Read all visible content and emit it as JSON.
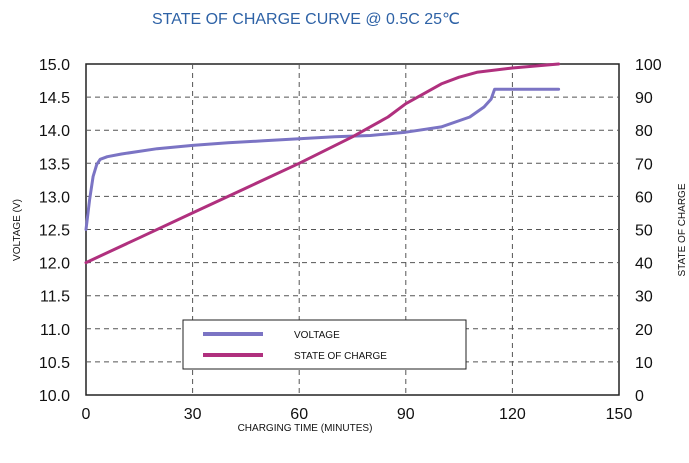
{
  "chart_data": {
    "type": "line",
    "title": "STATE OF CHARGE CURVE @ 0.5C 25℃",
    "xlabel": "CHARGING TIME (MINUTES)",
    "ylabel_left": "VOLTAGE (V)",
    "ylabel_right": "STATE OF CHARGE",
    "xlim": [
      0,
      150
    ],
    "ylim_left": [
      10.0,
      15.0
    ],
    "ylim_right": [
      0,
      100
    ],
    "x_ticks": [
      "0",
      "30",
      "60",
      "90",
      "120",
      "150"
    ],
    "y_left_ticks": [
      "10.0",
      "10.5",
      "11.0",
      "11.5",
      "12.0",
      "12.5",
      "13.0",
      "13.5",
      "14.0",
      "14.5",
      "15.0"
    ],
    "y_right_ticks": [
      "0",
      "10",
      "20",
      "30",
      "40",
      "50",
      "60",
      "70",
      "80",
      "90",
      "100"
    ],
    "grid": true,
    "legend_position": "bottom-center",
    "series": [
      {
        "name": "VOLTAGE",
        "axis": "left",
        "color": "#7b74c4",
        "points": [
          [
            0,
            12.5
          ],
          [
            1,
            12.95
          ],
          [
            2,
            13.3
          ],
          [
            3,
            13.48
          ],
          [
            4,
            13.56
          ],
          [
            6,
            13.6
          ],
          [
            10,
            13.64
          ],
          [
            20,
            13.72
          ],
          [
            30,
            13.77
          ],
          [
            40,
            13.81
          ],
          [
            50,
            13.84
          ],
          [
            60,
            13.87
          ],
          [
            70,
            13.9
          ],
          [
            80,
            13.92
          ],
          [
            90,
            13.97
          ],
          [
            100,
            14.05
          ],
          [
            108,
            14.2
          ],
          [
            112,
            14.35
          ],
          [
            114,
            14.47
          ],
          [
            115,
            14.62
          ],
          [
            133,
            14.62
          ]
        ]
      },
      {
        "name": "STATE OF CHARGE",
        "axis": "right",
        "color": "#b0307e",
        "points": [
          [
            0,
            40
          ],
          [
            15,
            47.5
          ],
          [
            30,
            55
          ],
          [
            45,
            62.5
          ],
          [
            60,
            70
          ],
          [
            75,
            78
          ],
          [
            85,
            84
          ],
          [
            90,
            88
          ],
          [
            95,
            91
          ],
          [
            100,
            94
          ],
          [
            105,
            96
          ],
          [
            110,
            97.5
          ],
          [
            120,
            98.8
          ],
          [
            133,
            100
          ]
        ]
      }
    ]
  }
}
